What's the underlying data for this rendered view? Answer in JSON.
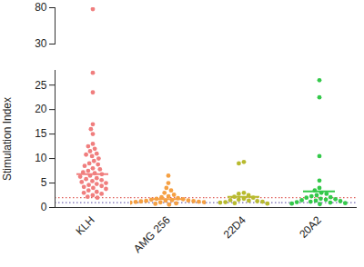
{
  "chart_data": [
    {
      "type": "scatter",
      "categories": [
        "KLH",
        "AMG 256",
        "22D4",
        "20A2"
      ],
      "colors": [
        "#f07e7e",
        "#f5a043",
        "#b8ba2e",
        "#34c94a"
      ],
      "values": [
        [
          78,
          27.5,
          23.5,
          17,
          16,
          15,
          13,
          12.5,
          12,
          11.5,
          11,
          10.8,
          10.5,
          10,
          9.5,
          9,
          8.8,
          8.5,
          8,
          7.8,
          7.5,
          7.2,
          7,
          6.8,
          6.5,
          6.3,
          6,
          5.8,
          5.6,
          5.4,
          5.2,
          5,
          4.8,
          4.6,
          4.4,
          4.2,
          4,
          3.8,
          3.5,
          3.2,
          3,
          2.8,
          2.5,
          2.2,
          2
        ],
        [
          6.5,
          5,
          4,
          3.5,
          3,
          2.6,
          2.3,
          2.1,
          1.9,
          1.8,
          1.7,
          1.6,
          1.5,
          1.45,
          1.4,
          1.35,
          1.3,
          1.25,
          1.2,
          1.15,
          1.1,
          1.05,
          1,
          0.95,
          0.9,
          0.85,
          0.8,
          0.75,
          0.7,
          0.6
        ],
        [
          9.3,
          9,
          3,
          2.8,
          2.5,
          2.2,
          2,
          1.8,
          1.6,
          1.5,
          1.4,
          1.3,
          1.2,
          1.1,
          1,
          0.9,
          0.8
        ],
        [
          26,
          22.5,
          10.5,
          5.5,
          4,
          3.5,
          3,
          2.8,
          2.5,
          2.3,
          2.1,
          2,
          1.8,
          1.7,
          1.6,
          1.5,
          1.4,
          1.3,
          1.2,
          1.1,
          1,
          0.9,
          0.8,
          0.7
        ]
      ],
      "means": [
        6.8,
        1.7,
        2.2,
        3.3
      ],
      "reference_lines": [
        {
          "value": 2,
          "color": "#e0605a",
          "line_style": "dotted"
        },
        {
          "value": 1,
          "color": "#7468b4",
          "line_style": "dotted"
        }
      ],
      "ylim": [
        30,
        80
      ],
      "yticks": [
        30,
        80
      ],
      "tick_labels": "y"
    },
    {
      "type": "scatter",
      "y_label": "Stimulation Index",
      "categories": [
        "KLH",
        "AMG 256",
        "22D4",
        "20A2"
      ],
      "colors": [
        "#f07e7e",
        "#f5a043",
        "#b8ba2e",
        "#34c94a"
      ],
      "values": [
        [
          78,
          27.5,
          23.5,
          17,
          16,
          15,
          13,
          12.5,
          12,
          11.5,
          11,
          10.8,
          10.5,
          10,
          9.5,
          9,
          8.8,
          8.5,
          8,
          7.8,
          7.5,
          7.2,
          7,
          6.8,
          6.5,
          6.3,
          6,
          5.8,
          5.6,
          5.4,
          5.2,
          5,
          4.8,
          4.6,
          4.4,
          4.2,
          4,
          3.8,
          3.5,
          3.2,
          3,
          2.8,
          2.5,
          2.2,
          2
        ],
        [
          6.5,
          5,
          4,
          3.5,
          3,
          2.6,
          2.3,
          2.1,
          1.9,
          1.8,
          1.7,
          1.6,
          1.5,
          1.45,
          1.4,
          1.35,
          1.3,
          1.25,
          1.2,
          1.15,
          1.1,
          1.05,
          1,
          0.95,
          0.9,
          0.85,
          0.8,
          0.75,
          0.7,
          0.6
        ],
        [
          9.3,
          9,
          3,
          2.8,
          2.5,
          2.2,
          2,
          1.8,
          1.6,
          1.5,
          1.4,
          1.3,
          1.2,
          1.1,
          1,
          0.9,
          0.8
        ],
        [
          26,
          22.5,
          10.5,
          5.5,
          4,
          3.5,
          3,
          2.8,
          2.5,
          2.3,
          2.1,
          2,
          1.8,
          1.7,
          1.6,
          1.5,
          1.4,
          1.3,
          1.2,
          1.1,
          1,
          0.9,
          0.8,
          0.7
        ]
      ],
      "means": [
        6.8,
        1.7,
        2.2,
        3.3
      ],
      "reference_lines": [
        {
          "value": 2,
          "color": "#e0605a",
          "line_style": "dotted"
        },
        {
          "value": 1,
          "color": "#7468b4",
          "line_style": "dotted"
        }
      ],
      "ylim": [
        0,
        28
      ],
      "yticks": [
        0,
        5,
        10,
        15,
        20,
        25
      ]
    }
  ]
}
